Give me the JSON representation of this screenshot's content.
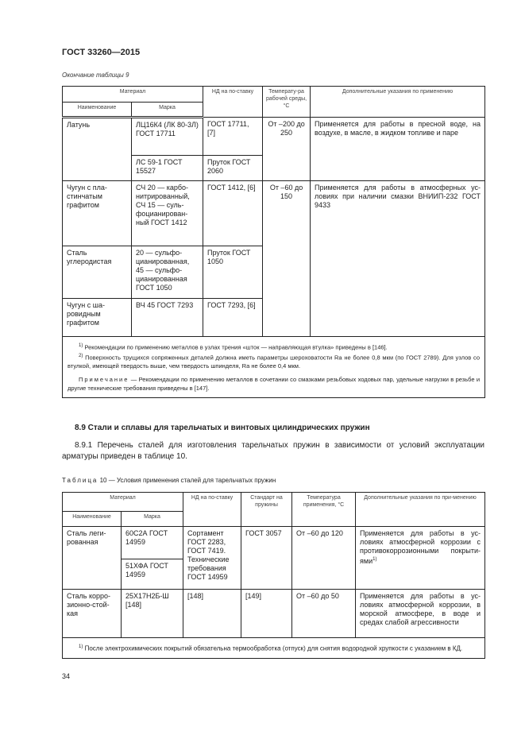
{
  "header": {
    "doc_title": "ГОСТ 33260—2015"
  },
  "table9": {
    "continuation": "Окончание таблицы 9",
    "headers": {
      "material": "Материал",
      "name": "Наименование",
      "grade": "Марка",
      "nd": "НД на по-ставку",
      "temp": "Температу-ра рабочей среды, °С",
      "notes": "Дополнительные указания по применению"
    },
    "rows": [
      {
        "name": "Латунь",
        "grade": "ЛЦ16К4 (ЛК 80-3Л) ГОСТ 17711",
        "nd": "ГОСТ 17711, [7]",
        "temp": "От –200 до 250",
        "notes": "Применяется для работы в пресной воде, на воздухе, в масле, в жидком топливе и паре"
      },
      {
        "grade": "ЛС 59-1 ГОСТ 15527",
        "nd": "Пруток ГОСТ 2060"
      },
      {
        "name": "Чугун с пла-стинчатым графитом",
        "grade": "СЧ 20 — карбо-нитрированный, СЧ 15 — суль-фоцианирован-ный ГОСТ 1412",
        "nd": "ГОСТ 1412, [6]",
        "temp": "От –60 до 150",
        "notes": "Применяется для работы в атмосферных ус-ловиях при наличии смазки ВНИИП-232 ГОСТ 9433"
      },
      {
        "name": "Сталь углеродистая",
        "grade": "20 — сульфо-цианированная, 45 — сульфо-цианированная ГОСТ 1050",
        "nd": "Пруток ГОСТ 1050"
      },
      {
        "name": "Чугун с ша-ровидным графитом",
        "grade": "ВЧ 45 ГОСТ 7293",
        "nd": "ГОСТ 7293, [6]"
      }
    ],
    "footnotes": [
      {
        "mark": "1)",
        "text": "Рекомендации по применению металлов в узлах трения «шток — направляющая втулка» приведены в [146]."
      },
      {
        "mark": "2)",
        "text": "Поверхность трущихся сопряженных деталей должна иметь параметры шероховатости Ra не более 0,8 мкм (по ГОСТ 2789). Для узлов со втулкой, имеющей твердость выше, чем твердость шпинделя, Ra не более 0,4 мкм."
      }
    ],
    "note_label": "Примечание",
    "note_text": " — Рекомендации по применению металлов в сочетании со смазками резьбовых ходовых пар, удельные нагрузки в резьбе и другие технические требования приведены в [147]."
  },
  "section": {
    "heading": "8.9 Стали и сплавы для тарельчатых и винтовых цилиндрических пружин",
    "paragraph": "8.9.1 Перечень сталей для изготовления тарельчатых пружин в зависимости от условий эксплуатации арматуры приведен в таблице 10."
  },
  "table10": {
    "caption_label": "Таблица",
    "caption_text": " 10 — Условия применения сталей для тарельчатых пружин",
    "headers": {
      "material": "Материал",
      "name": "Наименование",
      "grade": "Марка",
      "nd": "НД на по-ставку",
      "standard": "Стандарт на пружины",
      "temp": "Температура применения, °С",
      "notes": "Дополнительные указания по при-менению"
    },
    "rows": [
      {
        "name": "Сталь леги-рованная",
        "grade": "60С2А ГОСТ 14959",
        "nd": "Сортамент ГОСТ 2283, ГОСТ 7419. Технические требования ГОСТ 14959",
        "standard": "ГОСТ 3057",
        "temp": "От –60 до 120",
        "notes": "Применяется для работы в ус-ловиях атмосферной коррозии с противокоррозионными покрыти-ями",
        "notes_sup": "1)"
      },
      {
        "grade": "51ХФА ГОСТ 14959"
      },
      {
        "name": "Сталь корро-зионно-стой-кая",
        "grade": "25Х17Н2Б-Ш [148]",
        "nd": "[148]",
        "standard": "[149]",
        "temp": "От –60 до 50",
        "notes": "Применяется для работы в ус-ловиях атмосферной коррозии, в морской атмосфере, в воде и средах слабой агрессивности"
      }
    ],
    "footnote": {
      "mark": "1)",
      "text": "После электрохимических покрытий обязательна термообработка (отпуск) для снятия водородной хрупкости с указанием в КД."
    }
  },
  "footer": {
    "page_number": "34"
  }
}
